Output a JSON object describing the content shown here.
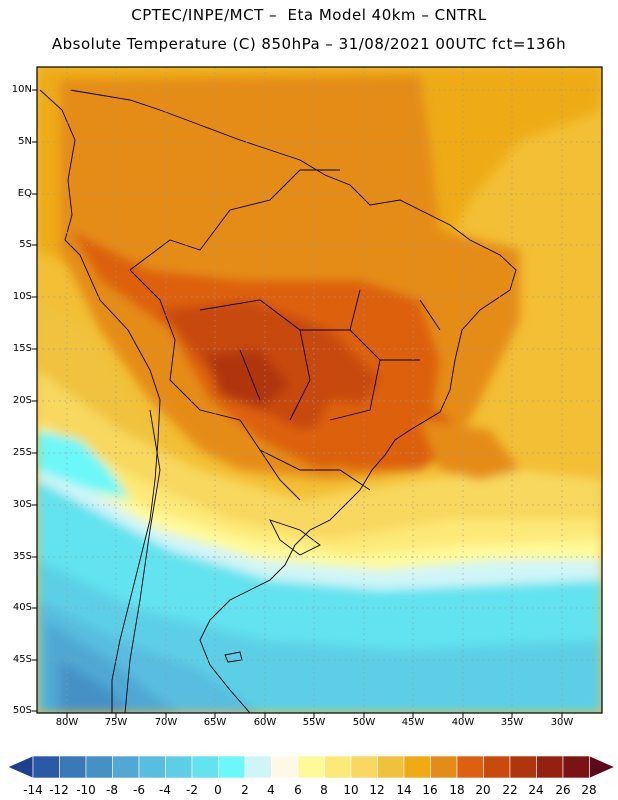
{
  "title_line1": "CPTEC/INPE/MCT –  Eta Model 40km – CNTRL",
  "title_line2": "Absolute Temperature (C) 850hPa – 31/08/2021 00UTC fct=136h",
  "map": {
    "lat_labels": [
      "10N",
      "5N",
      "EQ",
      "5S",
      "10S",
      "15S",
      "20S",
      "25S",
      "30S",
      "35S",
      "40S",
      "45S",
      "50S"
    ],
    "lon_labels": [
      "80W",
      "75W",
      "70W",
      "65W",
      "60W",
      "55W",
      "50W",
      "45W",
      "40W",
      "35W",
      "30W"
    ],
    "lat_range": [
      10,
      -50
    ],
    "lon_range": [
      -83,
      -25
    ],
    "grid": "dotted"
  },
  "colorbar": {
    "labels": [
      "-14",
      "-12",
      "-10",
      "-8",
      "-6",
      "-4",
      "-2",
      "0",
      "2",
      "4",
      "6",
      "8",
      "10",
      "12",
      "14",
      "16",
      "18",
      "20",
      "22",
      "24",
      "26",
      "28"
    ],
    "colors": [
      "#1e3f8e",
      "#2a5aa5",
      "#3a78b8",
      "#4591c6",
      "#50a8d3",
      "#58bde0",
      "#5ccfe6",
      "#62e3ef",
      "#6cf8f8",
      "#d0f5f8",
      "#fff8e4",
      "#fefa9a",
      "#fde978",
      "#f8d85e",
      "#f0c23c",
      "#eeab14",
      "#e58c18",
      "#dd6010",
      "#c84a0c",
      "#b0340c",
      "#962010",
      "#7a1414",
      "#5c0a1a"
    ]
  }
}
